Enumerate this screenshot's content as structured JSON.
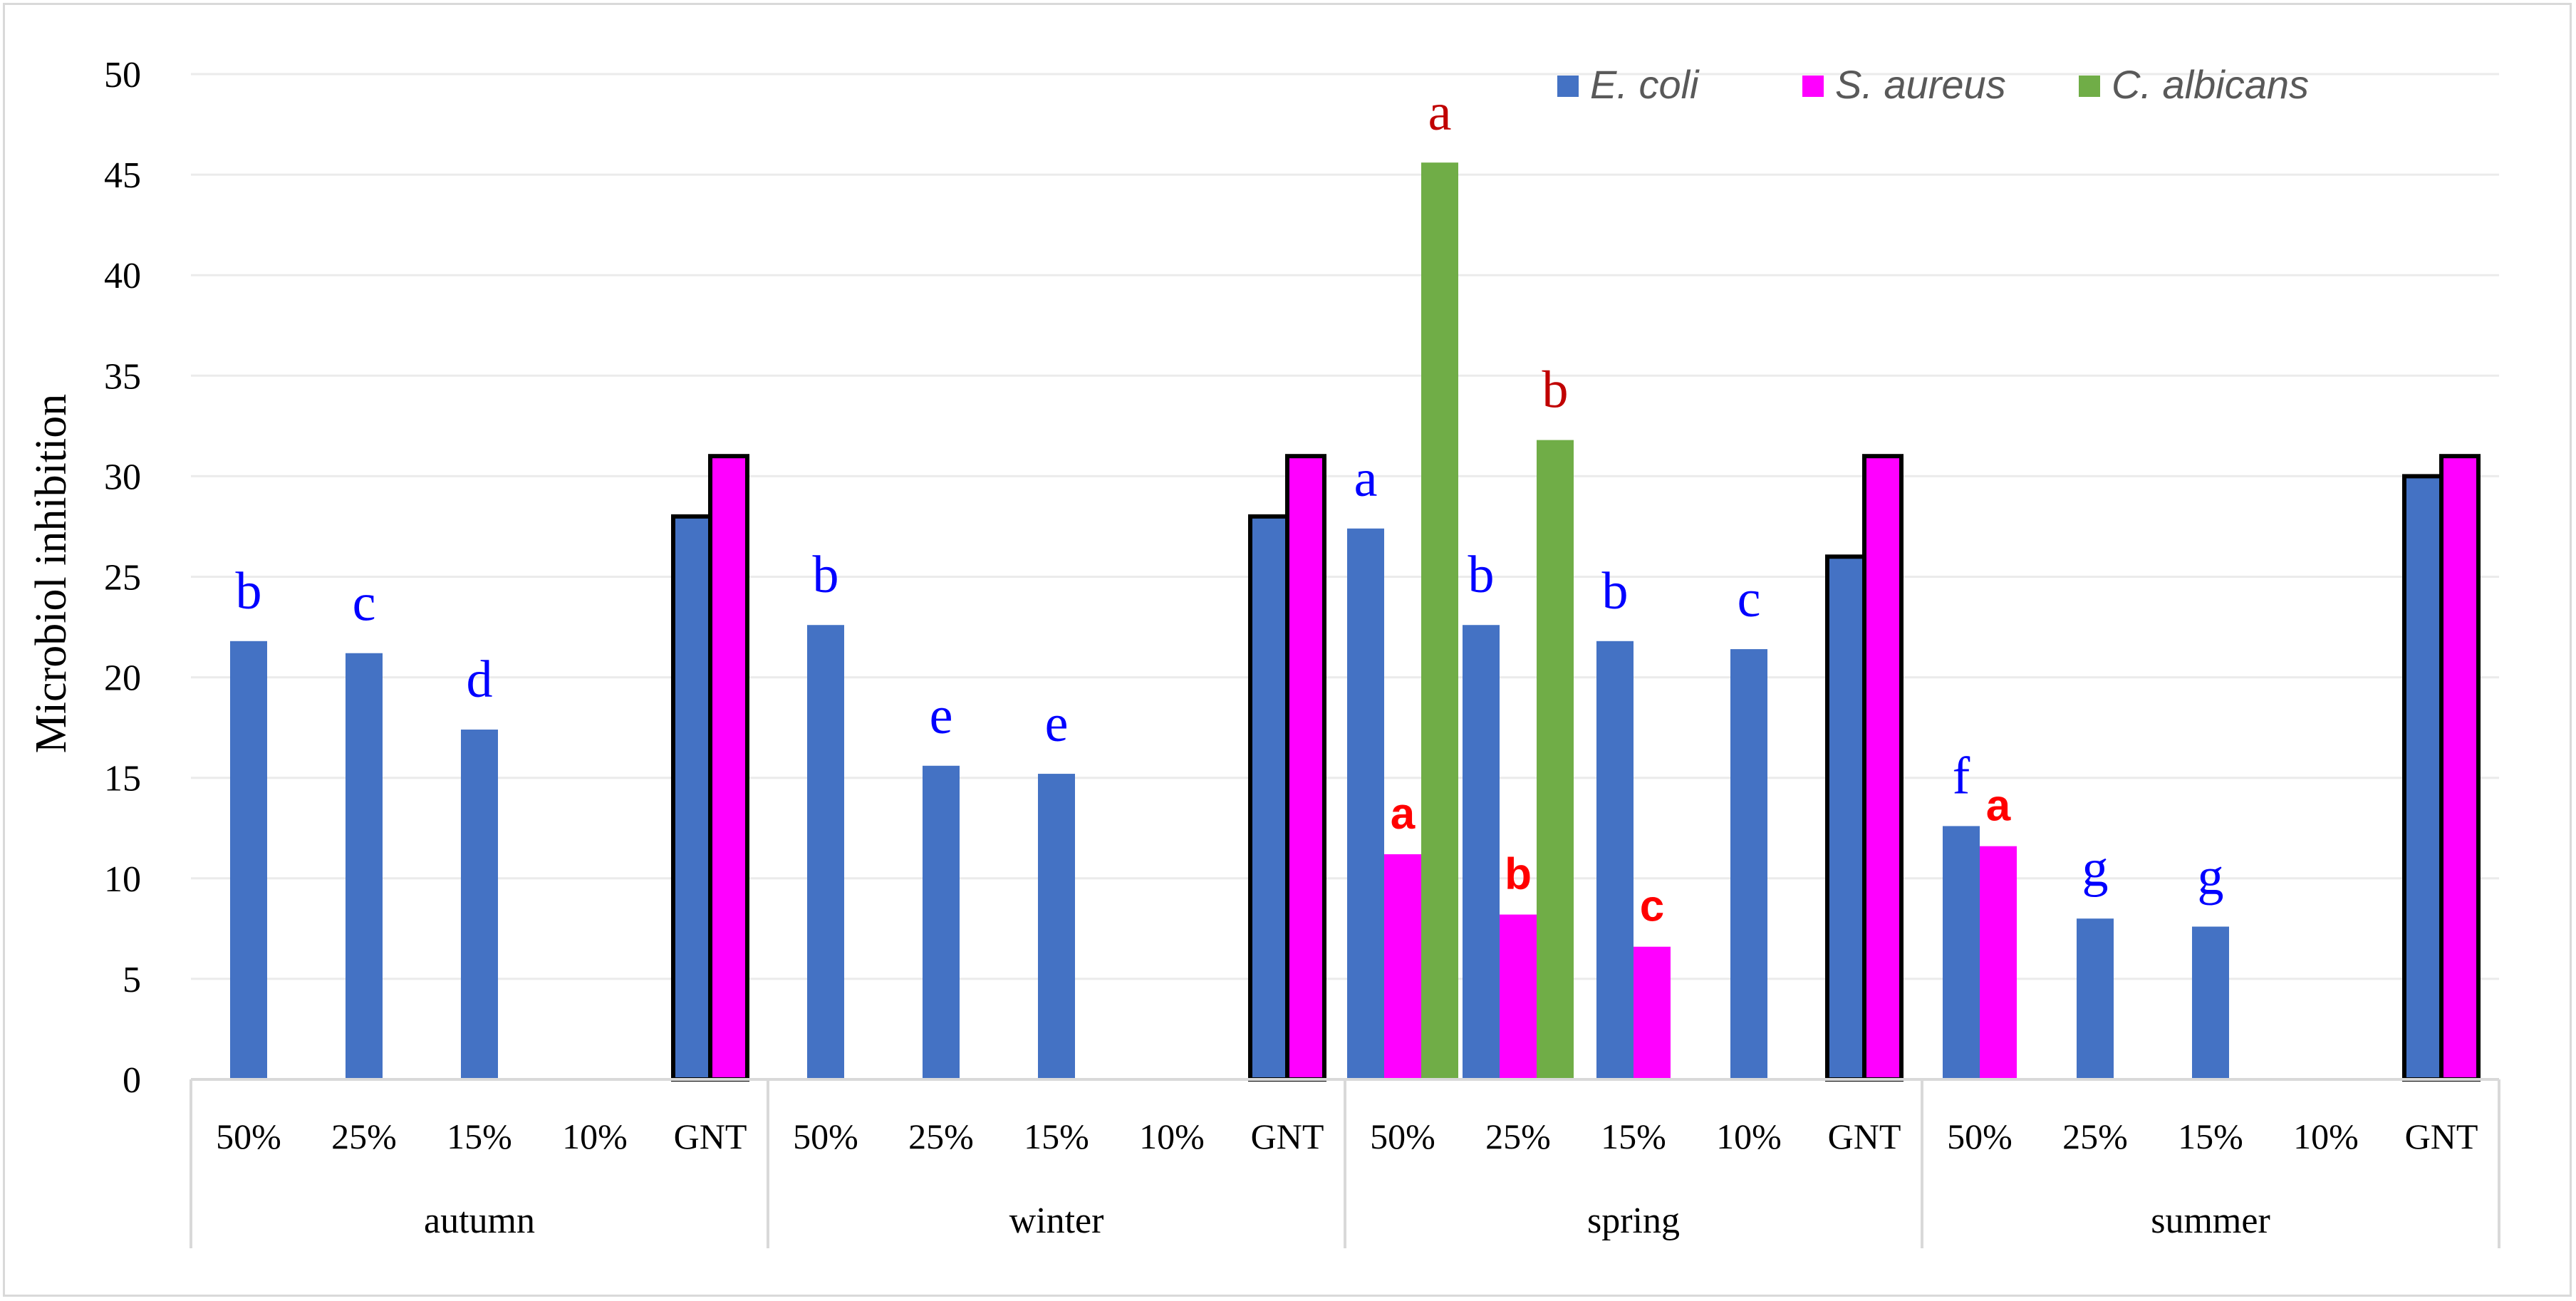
{
  "chart_data": {
    "type": "bar",
    "title": "",
    "ylabel": "Microbiol inhibition",
    "xlabel": "",
    "ylim": [
      0,
      50
    ],
    "yticks": [
      0,
      5,
      10,
      15,
      20,
      25,
      30,
      35,
      40,
      45,
      50
    ],
    "groups": [
      "autumn",
      "winter",
      "spring",
      "summer"
    ],
    "subcategories": [
      "50%",
      "25%",
      "15%",
      "10%",
      "GNT"
    ],
    "series": [
      {
        "name": "E. coli",
        "color": "#4472c4",
        "values": [
          [
            21.8,
            21.2,
            17.4,
            0,
            28
          ],
          [
            22.6,
            15.6,
            15.2,
            0,
            28
          ],
          [
            27.4,
            22.6,
            21.8,
            21.4,
            26
          ],
          [
            12.6,
            8.0,
            7.6,
            0,
            30
          ]
        ]
      },
      {
        "name": "S. aureus",
        "color": "#ff00ff",
        "values": [
          [
            0,
            0,
            0,
            0,
            31
          ],
          [
            0,
            0,
            0,
            0,
            31
          ],
          [
            11.2,
            8.2,
            6.6,
            0,
            31
          ],
          [
            11.6,
            0,
            0,
            0,
            31
          ]
        ]
      },
      {
        "name": "C. albicans",
        "color": "#70ad47",
        "values": [
          [
            0,
            0,
            0,
            0,
            0
          ],
          [
            0,
            0,
            0,
            0,
            0
          ],
          [
            45.6,
            31.8,
            0,
            0,
            0
          ],
          [
            0,
            0,
            0,
            0,
            0
          ]
        ]
      }
    ],
    "outlined_category": "GNT",
    "annotations": [
      {
        "text": "b",
        "group": 0,
        "cat": 0,
        "series": 0,
        "color": "#0000ff",
        "style": "serif"
      },
      {
        "text": "c",
        "group": 0,
        "cat": 1,
        "series": 0,
        "color": "#0000ff",
        "style": "serif"
      },
      {
        "text": "d",
        "group": 0,
        "cat": 2,
        "series": 0,
        "color": "#0000ff",
        "style": "serif"
      },
      {
        "text": "b",
        "group": 1,
        "cat": 0,
        "series": 0,
        "color": "#0000ff",
        "style": "serif"
      },
      {
        "text": "e",
        "group": 1,
        "cat": 1,
        "series": 0,
        "color": "#0000ff",
        "style": "serif"
      },
      {
        "text": "e",
        "group": 1,
        "cat": 2,
        "series": 0,
        "color": "#0000ff",
        "style": "serif"
      },
      {
        "text": "a",
        "group": 2,
        "cat": 0,
        "series": 0,
        "color": "#0000ff",
        "style": "serif"
      },
      {
        "text": "b",
        "group": 2,
        "cat": 1,
        "series": 0,
        "color": "#0000ff",
        "style": "serif"
      },
      {
        "text": "b",
        "group": 2,
        "cat": 2,
        "series": 0,
        "color": "#0000ff",
        "style": "serif"
      },
      {
        "text": "c",
        "group": 2,
        "cat": 3,
        "series": 0,
        "color": "#0000ff",
        "style": "serif"
      },
      {
        "text": "f",
        "group": 3,
        "cat": 0,
        "series": 0,
        "color": "#0000ff",
        "style": "serif"
      },
      {
        "text": "g",
        "group": 3,
        "cat": 1,
        "series": 0,
        "color": "#0000ff",
        "style": "serif"
      },
      {
        "text": "g",
        "group": 3,
        "cat": 2,
        "series": 0,
        "color": "#0000ff",
        "style": "serif"
      },
      {
        "text": "a",
        "group": 2,
        "cat": 0,
        "series": 1,
        "color": "#ff0000",
        "style": "sans"
      },
      {
        "text": "b",
        "group": 2,
        "cat": 1,
        "series": 1,
        "color": "#ff0000",
        "style": "sans"
      },
      {
        "text": "c",
        "group": 2,
        "cat": 2,
        "series": 1,
        "color": "#ff0000",
        "style": "sans"
      },
      {
        "text": "a",
        "group": 3,
        "cat": 0,
        "series": 1,
        "color": "#ff0000",
        "style": "sans"
      },
      {
        "text": "a",
        "group": 2,
        "cat": 0,
        "series": 2,
        "color": "#c00000",
        "style": "serif"
      },
      {
        "text": "b",
        "group": 2,
        "cat": 1,
        "series": 2,
        "color": "#c00000",
        "style": "serif"
      }
    ],
    "legend": {
      "position": "top-right"
    }
  }
}
